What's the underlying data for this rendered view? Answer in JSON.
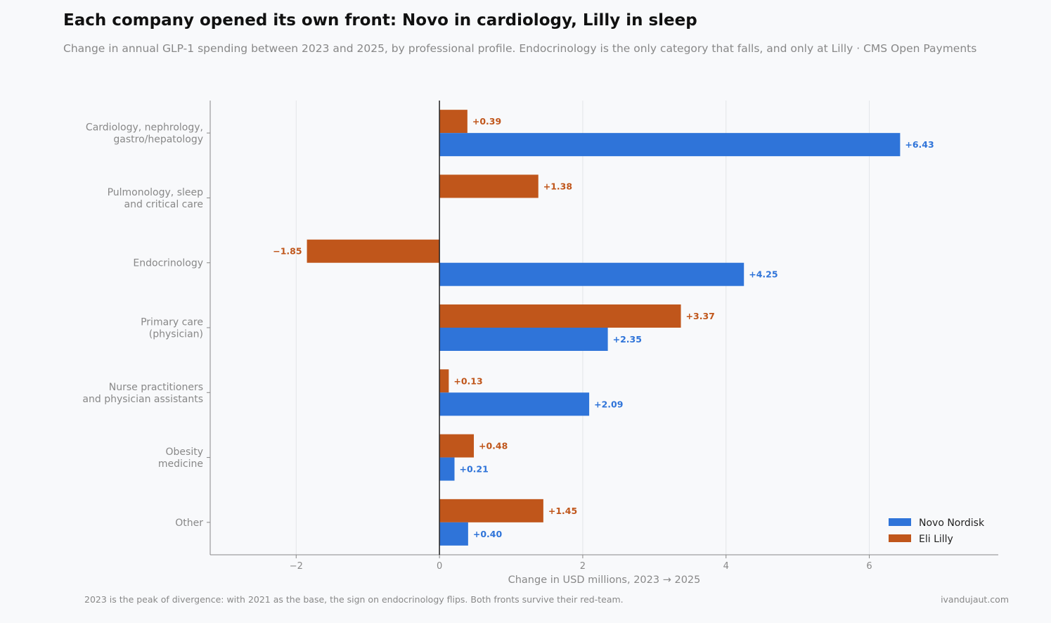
{
  "header": {
    "title": "Each company opened its own front: Novo in cardiology, Lilly in sleep",
    "subtitle": "Change in annual GLP-1 spending between 2023 and 2025, by professional profile. Endocrinology is the only category that falls, and only at Lilly · CMS Open Payments"
  },
  "footer": {
    "note": "2023 is the peak of divergence: with 2021 as the base, the sign on endocrinology flips. Both fronts survive their red-team.",
    "credit": "ivandujaut.com"
  },
  "chart_data": {
    "type": "bar",
    "orientation": "horizontal",
    "categories": [
      [
        "Cardiology, nephrology,",
        "gastro/hepatology"
      ],
      [
        "Pulmonology, sleep",
        "and critical care"
      ],
      [
        "Endocrinology"
      ],
      [
        "Primary care",
        "(physician)"
      ],
      [
        "Nurse practitioners",
        "and physician assistants"
      ],
      [
        "Obesity",
        "medicine"
      ],
      [
        "Other"
      ]
    ],
    "series": [
      {
        "name": "Novo Nordisk",
        "color": "#2f74d9",
        "values": [
          6.43,
          null,
          4.25,
          2.35,
          2.09,
          0.21,
          0.4
        ],
        "labels": [
          "+6.43",
          "",
          "+4.25",
          "+2.35",
          "+2.09",
          "+0.21",
          "+0.40"
        ]
      },
      {
        "name": "Eli Lilly",
        "color": "#c0561b",
        "values": [
          0.39,
          1.38,
          -1.85,
          3.37,
          0.13,
          0.48,
          1.45
        ],
        "labels": [
          "+0.39",
          "+1.38",
          "−1.85",
          "+3.37",
          "+0.13",
          "+0.48",
          "+1.45"
        ]
      }
    ],
    "xlabel": "Change in USD millions, 2023 → 2025",
    "xlim": [
      -3.2,
      7.8
    ],
    "xticks": [
      -2,
      0,
      2,
      4,
      6
    ],
    "xtick_labels": [
      "−2",
      "0",
      "2",
      "4",
      "6"
    ],
    "grid": true,
    "legend": "bottom-right"
  }
}
